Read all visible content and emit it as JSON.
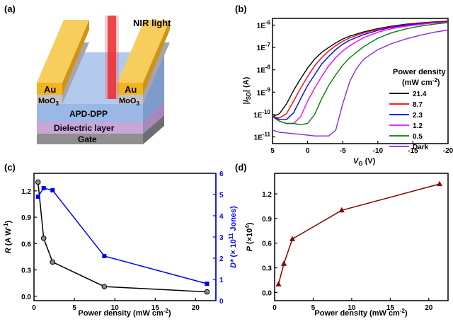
{
  "figure": {
    "panel_a": {
      "label": "(a)",
      "nir_label": "NIR light",
      "electrode_left": "Au",
      "electrode_right": "Au",
      "interlayer_left": "MoO",
      "interlayer_right": "MoO",
      "interlayer_sub": "3",
      "semiconductor": "APD-DPP",
      "dielectric": "Dielectric layer",
      "gate": "Gate"
    },
    "panel_b": {
      "label": "(b)"
    },
    "panel_c": {
      "label": "(c)"
    },
    "panel_d": {
      "label": "(d)"
    }
  },
  "colors": {
    "gold": "#f2b521",
    "nir": "#e8262a",
    "semiconductor": "#9ab8e6",
    "dielectric": "#c7a6d8",
    "gate": "#8f8f8f",
    "moo3": "#b9b9c4",
    "blue_axis": "#0000ff",
    "dark_red": "#8b0000"
  },
  "chart_data": [
    {
      "panel": "(b)",
      "type": "line",
      "xlabel_main": "V",
      "xlabel_sub": "G",
      "xlabel_unit": " (V)",
      "ylabel_pre": "|",
      "ylabel_main": "I",
      "ylabel_sub": "SD",
      "ylabel_post": "| (A)",
      "xlim": [
        5,
        -20
      ],
      "xticks": [
        5,
        0,
        -5,
        -10,
        -15,
        -20
      ],
      "xtick_labels": [
        "5",
        "0",
        "-5",
        "-10",
        "-15",
        "-20"
      ],
      "ylim": [
        5e-12,
        2e-06
      ],
      "yscale": "log",
      "yticks": [
        1e-11,
        1e-10,
        1e-09,
        1e-08,
        1e-07,
        1e-06
      ],
      "ytick_labels": [
        {
          "mant": "1E",
          "exp": "-11"
        },
        {
          "mant": "1E",
          "exp": "-10"
        },
        {
          "mant": "1E",
          "exp": "-9"
        },
        {
          "mant": "1E",
          "exp": "-8"
        },
        {
          "mant": "1E",
          "exp": "-7"
        },
        {
          "mant": "1E",
          "exp": "-6"
        }
      ],
      "legend_title": "Power density",
      "legend_unit_pre": "(mW cm",
      "legend_unit_exp": "-2",
      "legend_unit_post": ")",
      "legend_position": "right",
      "series": [
        {
          "name": "21.4",
          "color": "#000000",
          "x": [
            5,
            4,
            3,
            2,
            1,
            0,
            -1,
            -2,
            -3,
            -4,
            -5,
            -6,
            -8,
            -10,
            -12,
            -14,
            -16,
            -18,
            -20
          ],
          "y": [
            8e-11,
            1.1e-10,
            3e-10,
            1.2e-09,
            4e-09,
            1.2e-08,
            3e-08,
            6e-08,
            1e-07,
            1.6e-07,
            2.4e-07,
            3.2e-07,
            5e-07,
            7e-07,
            9e-07,
            1.1e-06,
            1.25e-06,
            1.4e-06,
            1.5e-06
          ]
        },
        {
          "name": "8.7",
          "color": "#ff0000",
          "x": [
            5,
            4,
            3,
            2,
            1,
            0,
            -1,
            -2,
            -3,
            -4,
            -5,
            -6,
            -8,
            -10,
            -12,
            -14,
            -16,
            -18,
            -20
          ],
          "y": [
            8e-11,
            7e-11,
            1.1e-10,
            4e-10,
            1.5e-09,
            5e-09,
            1.5e-08,
            3.5e-08,
            7e-08,
            1.2e-07,
            1.9e-07,
            2.7e-07,
            4.5e-07,
            6.5e-07,
            8.5e-07,
            1.05e-06,
            1.2e-06,
            1.35e-06,
            1.45e-06
          ]
        },
        {
          "name": "2.3",
          "color": "#0000ff",
          "x": [
            5,
            4,
            3,
            2,
            1,
            0,
            -1,
            -2,
            -3,
            -4,
            -5,
            -6,
            -8,
            -10,
            -12,
            -14,
            -16,
            -18,
            -20
          ],
          "y": [
            8e-11,
            6e-11,
            6e-11,
            1.2e-10,
            5e-10,
            2e-09,
            6e-09,
            1.8e-08,
            4e-08,
            8e-08,
            1.4e-07,
            2.1e-07,
            3.8e-07,
            5.8e-07,
            8e-07,
            1e-06,
            1.15e-06,
            1.3e-06,
            1.4e-06
          ]
        },
        {
          "name": "1.2",
          "color": "#ff00ff",
          "x": [
            5,
            4,
            3,
            2,
            1,
            0,
            -1,
            -2,
            -3,
            -4,
            -5,
            -6,
            -8,
            -10,
            -12,
            -14,
            -16,
            -18,
            -20
          ],
          "y": [
            8e-11,
            5e-11,
            4e-11,
            4e-11,
            8e-11,
            4e-10,
            1.5e-09,
            5e-09,
            1.5e-08,
            3.5e-08,
            7e-08,
            1.2e-07,
            2.8e-07,
            4.8e-07,
            7e-07,
            9e-07,
            1.08e-06,
            1.25e-06,
            1.35e-06
          ]
        },
        {
          "name": "0.5",
          "color": "#008000",
          "x": [
            5,
            4,
            3,
            2,
            1,
            0,
            -1,
            -2,
            -3,
            -4,
            -5,
            -6,
            -8,
            -10,
            -12,
            -14,
            -16,
            -18,
            -20
          ],
          "y": [
            8e-11,
            5e-11,
            4e-11,
            4e-11,
            3.5e-11,
            4e-11,
            1e-10,
            5e-10,
            2e-09,
            6e-09,
            1.6e-08,
            3.5e-08,
            1.1e-07,
            2.6e-07,
            4.6e-07,
            6.8e-07,
            9e-07,
            1.1e-06,
            1.3e-06
          ]
        },
        {
          "name": "Dark",
          "color": "#8a2be2",
          "x": [
            5,
            4,
            3,
            2,
            1,
            0,
            -1,
            -2,
            -3,
            -4,
            -5,
            -6,
            -7,
            -8,
            -10,
            -12,
            -14,
            -16,
            -18,
            -20
          ],
          "y": [
            2e-11,
            1.6e-11,
            1.5e-11,
            1.4e-11,
            1.3e-11,
            1.2e-11,
            1.1e-11,
            1.1e-11,
            1.1e-11,
            2e-11,
            3e-10,
            3e-09,
            1.2e-08,
            3e-08,
            8e-08,
            1.5e-07,
            2.4e-07,
            3.5e-07,
            4.8e-07,
            6e-07
          ]
        }
      ]
    },
    {
      "panel": "(c)",
      "type": "line",
      "xlabel": "Power density (mW cm",
      "xlabel_exp": "-2",
      "xlabel_post": ")",
      "xlim": [
        0,
        22.5
      ],
      "xticks": [
        0,
        5,
        10,
        15,
        20
      ],
      "ylabel_left_main": "R",
      "ylabel_left_unit": " (A W",
      "ylabel_left_exp": "-1",
      "ylabel_left_post": ")",
      "ylim_left": [
        -0.05,
        1.4
      ],
      "yticks_left": [
        0.0,
        0.3,
        0.6,
        0.9,
        1.2
      ],
      "ytick_labels_left": [
        "0.0",
        "0.3",
        "0.6",
        "0.9",
        "1.2"
      ],
      "ylabel_right_main": "D*",
      "ylabel_right_unit": " (× 10",
      "ylabel_right_exp": "11",
      "ylabel_right_post": " Jones)",
      "ylim_right": [
        0,
        6
      ],
      "yticks_right": [
        0,
        1,
        2,
        3,
        4,
        5,
        6
      ],
      "series": [
        {
          "name": "R",
          "axis": "left",
          "color": "#000000",
          "marker": "circle",
          "x": [
            0.5,
            1.2,
            2.3,
            8.7,
            21.4
          ],
          "y": [
            1.3,
            0.66,
            0.39,
            0.11,
            0.05
          ]
        },
        {
          "name": "D*",
          "axis": "right",
          "color": "#0000ff",
          "marker": "square",
          "x": [
            0.5,
            1.2,
            2.3,
            8.7,
            21.4
          ],
          "y": [
            4.9,
            5.3,
            5.2,
            2.1,
            0.8
          ]
        }
      ]
    },
    {
      "panel": "(d)",
      "type": "line",
      "xlabel": "Power density (mW cm",
      "xlabel_exp": "-2",
      "xlabel_post": ")",
      "xlim": [
        0,
        22.5
      ],
      "xticks": [
        0,
        5,
        10,
        15,
        20
      ],
      "ylabel_main": "P",
      "ylabel_unit": " (×10",
      "ylabel_exp": "4",
      "ylabel_post": ")",
      "ylim": [
        -0.1,
        1.45
      ],
      "yticks": [
        0.0,
        0.3,
        0.6,
        0.9,
        1.2
      ],
      "ytick_labels": [
        "0.0",
        "0.3",
        "0.6",
        "0.9",
        "1.2"
      ],
      "series": [
        {
          "name": "P",
          "color": "#8b0000",
          "marker": "triangle",
          "x": [
            0.5,
            1.2,
            2.3,
            8.7,
            21.4
          ],
          "y": [
            0.1,
            0.35,
            0.65,
            1.0,
            1.32
          ]
        }
      ]
    }
  ]
}
